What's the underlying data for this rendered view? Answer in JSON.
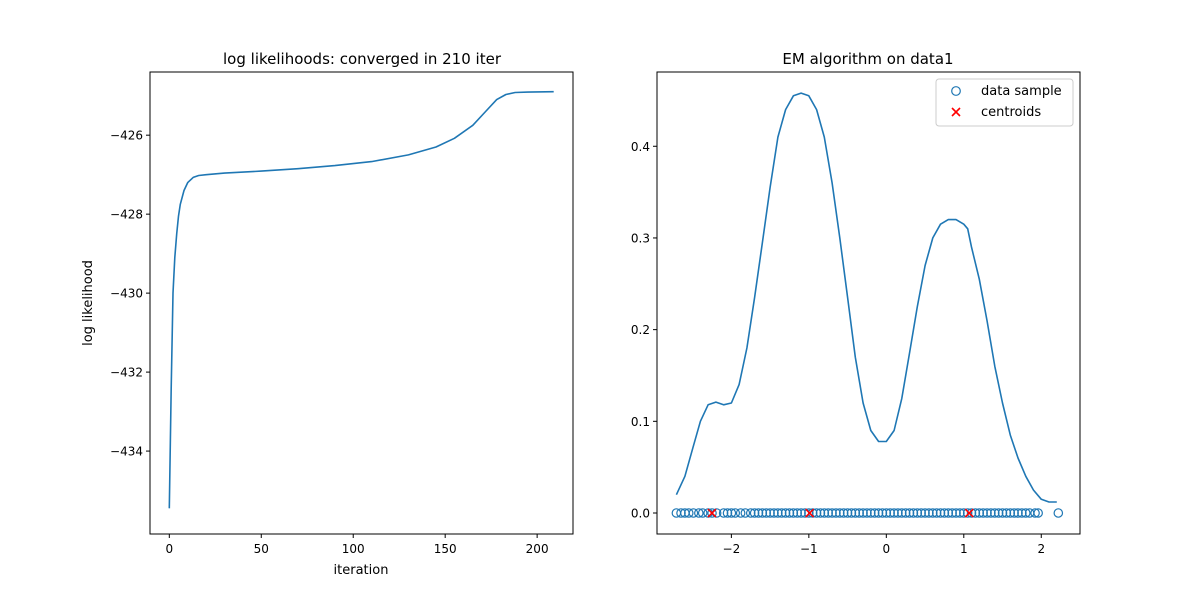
{
  "chart_data": [
    {
      "type": "line",
      "title": "log likelihoods: converged in 210 iter",
      "xlabel": "iteration",
      "ylabel": "log likelihood",
      "xlim": [
        -10.5,
        219.5
      ],
      "ylim": [
        -436.1,
        -424.4
      ],
      "xticks": [
        0,
        50,
        100,
        150,
        200
      ],
      "xtick_labels": [
        "0",
        "50",
        "100",
        "150",
        "200"
      ],
      "yticks": [
        -434,
        -432,
        -430,
        -428,
        -426
      ],
      "ytick_labels": [
        "−434",
        "−432",
        "−430",
        "−428",
        "−426"
      ],
      "grid": false,
      "series": [
        {
          "color": "#1f77b4",
          "x": [
            0,
            1,
            2,
            3,
            4,
            5,
            6,
            8,
            10,
            13,
            16,
            20,
            30,
            50,
            70,
            90,
            110,
            130,
            145,
            155,
            165,
            172,
            178,
            183,
            188,
            195,
            209
          ],
          "y": [
            -435.45,
            -432.4,
            -430.0,
            -429.1,
            -428.5,
            -428.05,
            -427.75,
            -427.4,
            -427.2,
            -427.07,
            -427.02,
            -427.0,
            -426.96,
            -426.91,
            -426.85,
            -426.77,
            -426.67,
            -426.5,
            -426.3,
            -426.08,
            -425.75,
            -425.4,
            -425.1,
            -424.97,
            -424.92,
            -424.91,
            -424.9
          ]
        }
      ]
    },
    {
      "type": "line",
      "title": "EM algorithm on data1",
      "xlim": [
        -2.96,
        2.5
      ],
      "ylim": [
        -0.0229,
        0.481
      ],
      "xticks": [
        -2,
        -1,
        0,
        1,
        2
      ],
      "xtick_labels": [
        "−2",
        "−1",
        "0",
        "1",
        "2"
      ],
      "yticks": [
        0.0,
        0.1,
        0.2,
        0.3,
        0.4
      ],
      "ytick_labels": [
        "0.0",
        "0.1",
        "0.2",
        "0.3",
        "0.4"
      ],
      "grid": false,
      "legend": {
        "position": "top-right",
        "entries": [
          {
            "label": "data sample",
            "marker": "open-circle",
            "color": "#1f77b4"
          },
          {
            "label": "centroids",
            "marker": "x",
            "color": "#ff0000"
          }
        ]
      },
      "series": [
        {
          "color": "#1f77b4",
          "x": [
            -2.71,
            -2.6,
            -2.5,
            -2.4,
            -2.3,
            -2.2,
            -2.1,
            -2.0,
            -1.9,
            -1.8,
            -1.7,
            -1.6,
            -1.5,
            -1.4,
            -1.3,
            -1.2,
            -1.1,
            -1.0,
            -0.9,
            -0.8,
            -0.7,
            -0.6,
            -0.5,
            -0.4,
            -0.3,
            -0.2,
            -0.1,
            0.0,
            0.1,
            0.2,
            0.3,
            0.4,
            0.5,
            0.6,
            0.7,
            0.8,
            0.9,
            1.0,
            1.05,
            1.1,
            1.2,
            1.3,
            1.4,
            1.5,
            1.6,
            1.7,
            1.8,
            1.9,
            2.0,
            2.1,
            2.2
          ],
          "y": [
            0.02,
            0.04,
            0.07,
            0.1,
            0.118,
            0.121,
            0.118,
            0.12,
            0.14,
            0.18,
            0.235,
            0.295,
            0.355,
            0.41,
            0.44,
            0.455,
            0.458,
            0.455,
            0.44,
            0.41,
            0.36,
            0.3,
            0.235,
            0.17,
            0.12,
            0.09,
            0.078,
            0.078,
            0.09,
            0.125,
            0.175,
            0.225,
            0.27,
            0.3,
            0.315,
            0.32,
            0.32,
            0.315,
            0.31,
            0.29,
            0.255,
            0.21,
            0.16,
            0.12,
            0.085,
            0.06,
            0.04,
            0.025,
            0.015,
            0.012,
            0.012
          ]
        }
      ],
      "samples": [
        -2.71,
        -2.65,
        -2.6,
        -2.55,
        -2.49,
        -2.42,
        -2.37,
        -2.3,
        -2.25,
        -2.19,
        -2.1,
        -2.05,
        -2.0,
        -1.95,
        -1.88,
        -1.82,
        -1.75,
        -1.7,
        -1.65,
        -1.6,
        -1.55,
        -1.5,
        -1.45,
        -1.4,
        -1.35,
        -1.3,
        -1.25,
        -1.2,
        -1.15,
        -1.1,
        -1.05,
        -1.0,
        -0.95,
        -0.9,
        -0.85,
        -0.8,
        -0.75,
        -0.7,
        -0.65,
        -0.6,
        -0.55,
        -0.5,
        -0.45,
        -0.4,
        -0.35,
        -0.3,
        -0.25,
        -0.2,
        -0.15,
        -0.1,
        -0.05,
        0.0,
        0.05,
        0.1,
        0.15,
        0.2,
        0.25,
        0.3,
        0.35,
        0.4,
        0.45,
        0.5,
        0.55,
        0.6,
        0.65,
        0.7,
        0.75,
        0.8,
        0.85,
        0.9,
        0.95,
        1.0,
        1.05,
        1.1,
        1.15,
        1.2,
        1.25,
        1.3,
        1.35,
        1.4,
        1.45,
        1.5,
        1.55,
        1.6,
        1.65,
        1.7,
        1.75,
        1.8,
        1.85,
        1.92,
        1.96,
        2.22
      ],
      "centroids": [
        -2.25,
        -0.99,
        1.07
      ]
    }
  ]
}
